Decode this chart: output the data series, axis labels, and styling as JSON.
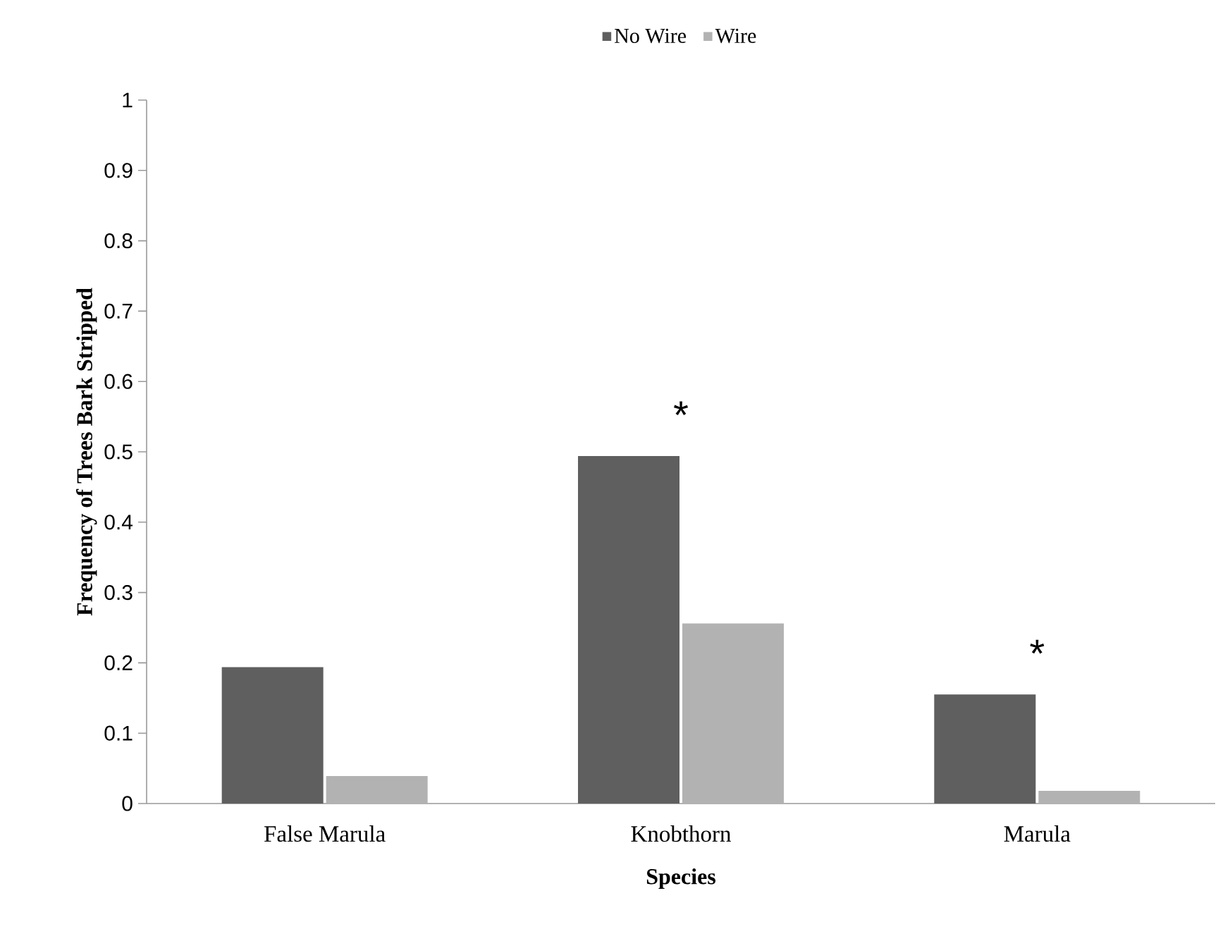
{
  "chart_data": {
    "type": "bar",
    "xlabel": "Species",
    "ylabel": "Frequency of Trees Bark Stripped",
    "categories": [
      "False Marula",
      "Knobthorn",
      "Marula"
    ],
    "series": [
      {
        "name": "No Wire",
        "color": "#5f5f5f",
        "values": [
          0.194,
          0.494,
          0.155
        ]
      },
      {
        "name": "Wire",
        "color": "#b2b2b2",
        "values": [
          0.039,
          0.256,
          0.018
        ]
      }
    ],
    "ylim": [
      0,
      1
    ],
    "yticks": [
      0,
      0.1,
      0.2,
      0.3,
      0.4,
      0.5,
      0.6,
      0.7,
      0.8,
      0.9,
      1
    ],
    "annotations": [
      {
        "text": "*",
        "x": "Knobthorn",
        "y": 0.494
      },
      {
        "text": "*",
        "x": "Marula",
        "y": 0.155
      }
    ],
    "grid": false,
    "legend": "top"
  }
}
